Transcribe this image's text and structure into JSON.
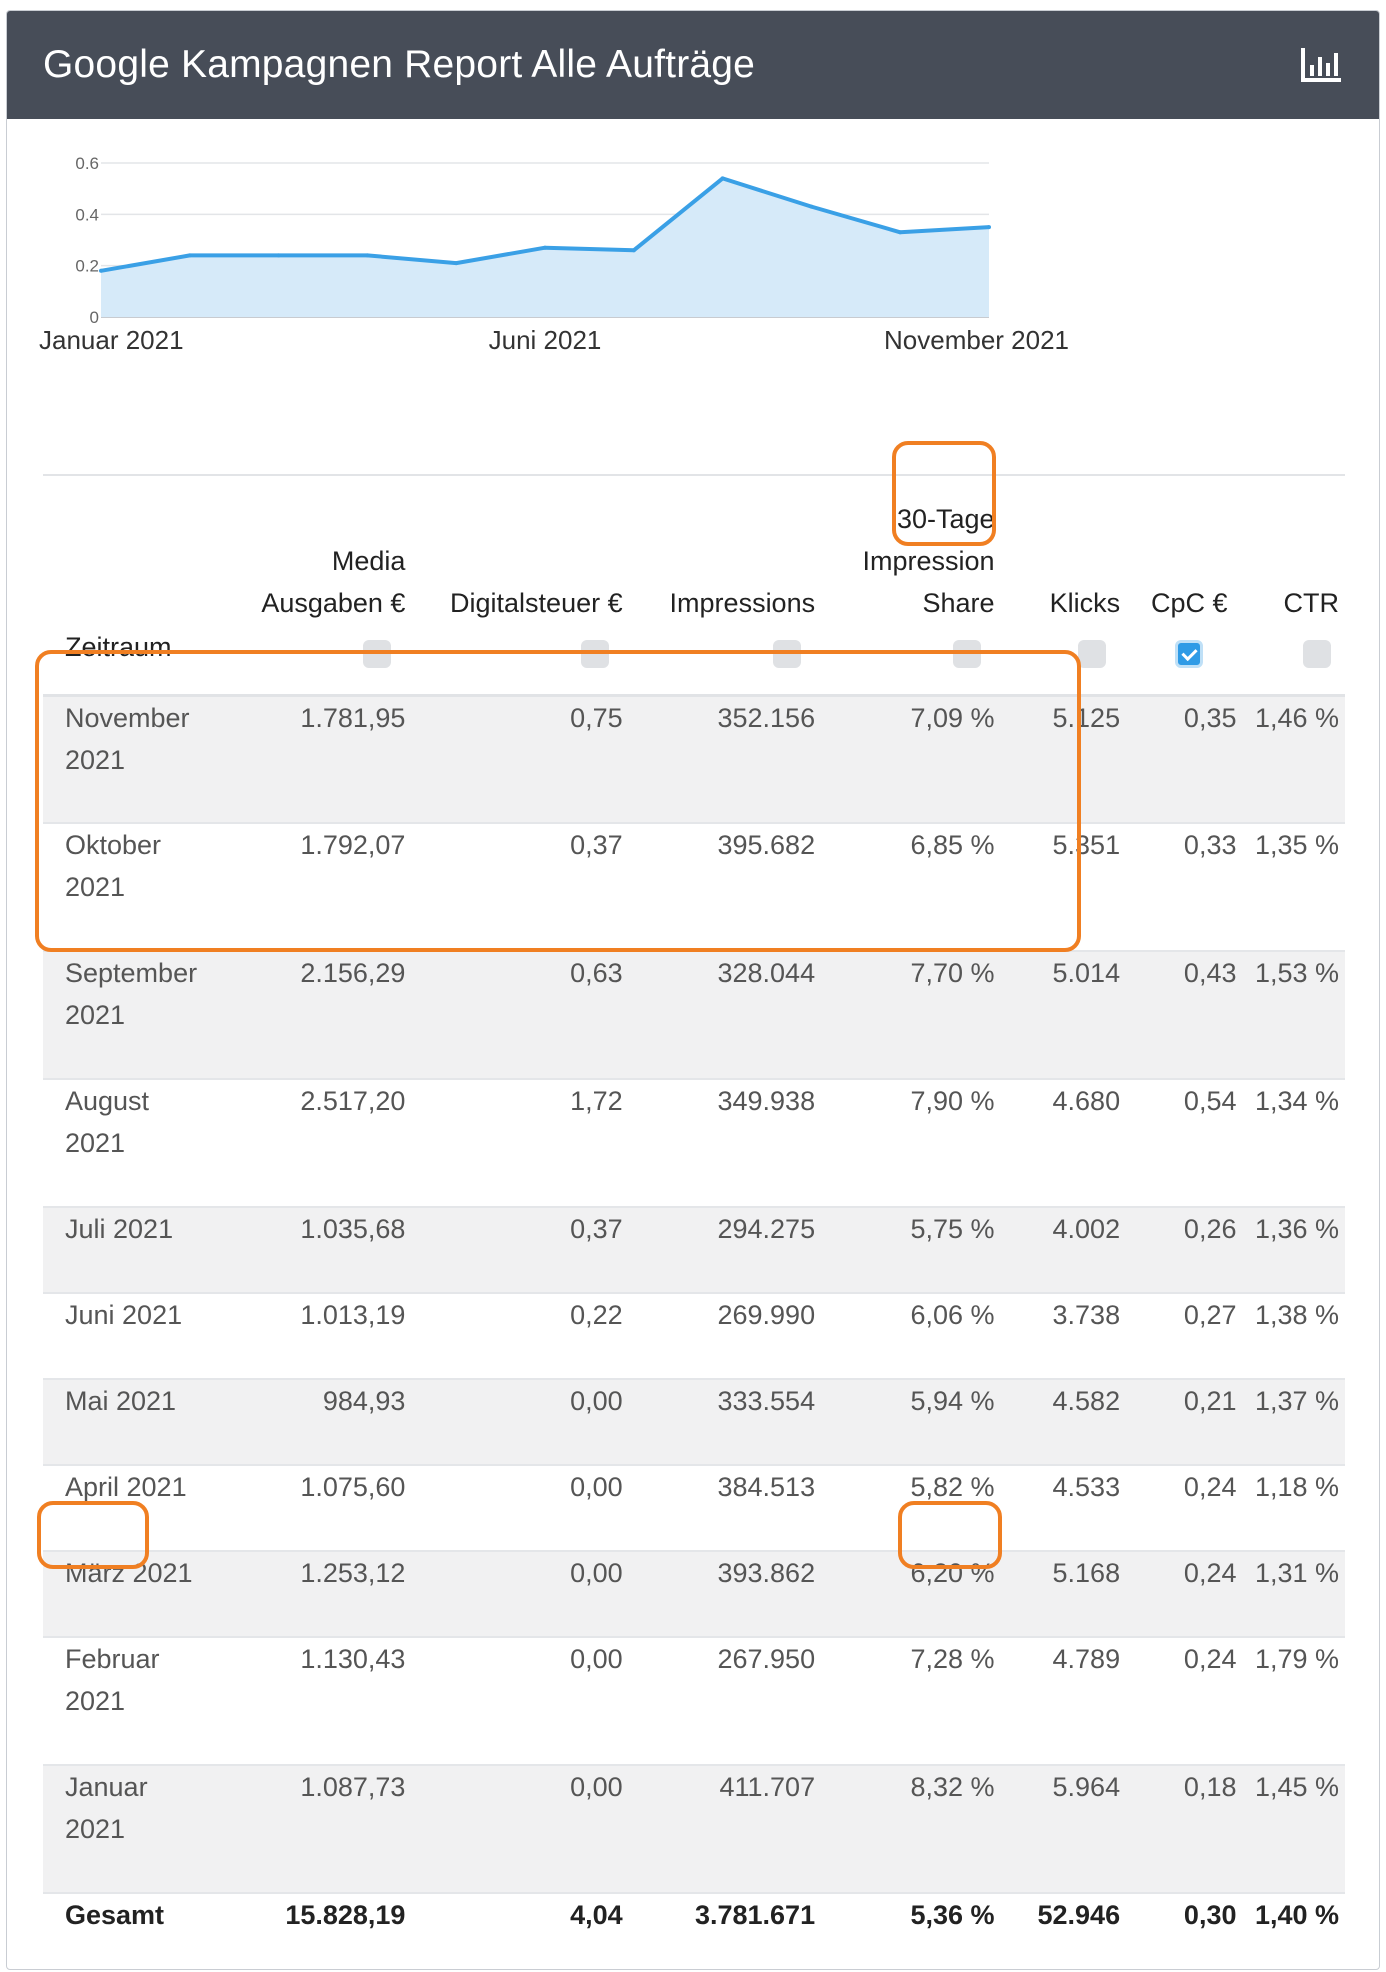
{
  "header": {
    "title": "Google Kampagnen Report Alle Aufträge",
    "report_icon": "bar-chart-report-icon"
  },
  "chart_data": {
    "type": "area",
    "x": [
      "Januar 2021",
      "Februar 2021",
      "März 2021",
      "April 2021",
      "Mai 2021",
      "Juni 2021",
      "Juli 2021",
      "August 2021",
      "September 2021",
      "Oktober 2021",
      "November 2021"
    ],
    "values": [
      0.18,
      0.24,
      0.24,
      0.24,
      0.21,
      0.27,
      0.26,
      0.54,
      0.43,
      0.33,
      0.35
    ],
    "y_ticks": [
      "0",
      "0.2",
      "0.4",
      "0.6"
    ],
    "x_ticks": [
      "Januar 2021",
      "Juni 2021",
      "November 2021"
    ],
    "ylim": [
      0,
      0.6
    ],
    "grid": true,
    "line_color": "#3aa0e6",
    "fill_color": "#d6eaf9"
  },
  "table": {
    "headers": {
      "period": "Zeitraum",
      "media_1": "Media",
      "media_2": "Ausgaben €",
      "digitalsteuer": "Digitalsteuer €",
      "impressions": "Impressions",
      "share_1": "30-Tage",
      "share_2": "Impression",
      "share_3": "Share",
      "klicks": "Klicks",
      "cpc": "CpC €",
      "ctr": "CTR"
    },
    "selected_column": "CpC €",
    "rows": [
      {
        "period": "November 2021",
        "media": "1.781,95",
        "tax": "0,75",
        "impr": "352.156",
        "share": "7,09 %",
        "klicks": "5.125",
        "cpc": "0,35",
        "ctr": "1,46 %"
      },
      {
        "period": "Oktober 2021",
        "media": "1.792,07",
        "tax": "0,37",
        "impr": "395.682",
        "share": "6,85 %",
        "klicks": "5.351",
        "cpc": "0,33",
        "ctr": "1,35 %"
      },
      {
        "period": "September 2021",
        "media": "2.156,29",
        "tax": "0,63",
        "impr": "328.044",
        "share": "7,70 %",
        "klicks": "5.014",
        "cpc": "0,43",
        "ctr": "1,53 %"
      },
      {
        "period": "August 2021",
        "media": "2.517,20",
        "tax": "1,72",
        "impr": "349.938",
        "share": "7,90 %",
        "klicks": "4.680",
        "cpc": "0,54",
        "ctr": "1,34 %"
      },
      {
        "period": "Juli 2021",
        "media": "1.035,68",
        "tax": "0,37",
        "impr": "294.275",
        "share": "5,75 %",
        "klicks": "4.002",
        "cpc": "0,26",
        "ctr": "1,36 %"
      },
      {
        "period": "Juni 2021",
        "media": "1.013,19",
        "tax": "0,22",
        "impr": "269.990",
        "share": "6,06 %",
        "klicks": "3.738",
        "cpc": "0,27",
        "ctr": "1,38 %"
      },
      {
        "period": "Mai 2021",
        "media": "984,93",
        "tax": "0,00",
        "impr": "333.554",
        "share": "5,94 %",
        "klicks": "4.582",
        "cpc": "0,21",
        "ctr": "1,37 %"
      },
      {
        "period": "April 2021",
        "media": "1.075,60",
        "tax": "0,00",
        "impr": "384.513",
        "share": "5,82 %",
        "klicks": "4.533",
        "cpc": "0,24",
        "ctr": "1,18 %"
      },
      {
        "period": "März 2021",
        "media": "1.253,12",
        "tax": "0,00",
        "impr": "393.862",
        "share": "6,20 %",
        "klicks": "5.168",
        "cpc": "0,24",
        "ctr": "1,31 %"
      },
      {
        "period": "Februar 2021",
        "media": "1.130,43",
        "tax": "0,00",
        "impr": "267.950",
        "share": "7,28 %",
        "klicks": "4.789",
        "cpc": "0,24",
        "ctr": "1,79 %"
      },
      {
        "period": "Januar 2021",
        "media": "1.087,73",
        "tax": "0,00",
        "impr": "411.707",
        "share": "8,32 %",
        "klicks": "5.964",
        "cpc": "0,18",
        "ctr": "1,45 %"
      }
    ],
    "total": {
      "period": "Gesamt",
      "media": "15.828,19",
      "tax": "4,04",
      "impr": "3.781.671",
      "share": "5,36 %",
      "klicks": "52.946",
      "cpc": "0,30",
      "ctr": "1,40 %"
    }
  },
  "annotations": {
    "highlight_color": "#f07f22"
  }
}
